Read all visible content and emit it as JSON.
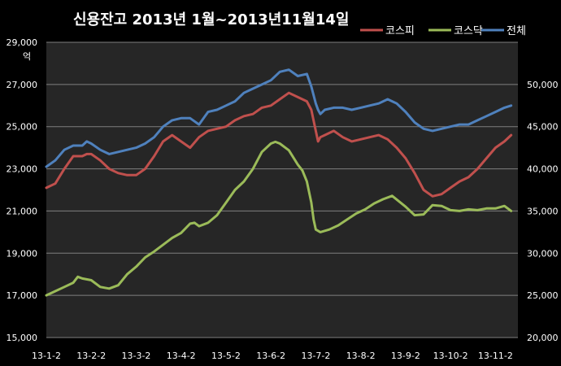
{
  "chart_data": {
    "type": "line",
    "title": "신용잔고 2013년 1월~2013년11월14일",
    "left_axis": {
      "unit": "억",
      "range": [
        15000,
        29000
      ],
      "ticks": [
        15000,
        17000,
        19000,
        21000,
        23000,
        25000,
        27000,
        29000
      ],
      "tick_labels": [
        "15,000",
        "17,000",
        "19,000",
        "21,000",
        "23,000",
        "25,000",
        "27,000",
        "29,000"
      ]
    },
    "right_axis": {
      "range": [
        20000,
        55000
      ],
      "ticks": [
        20000,
        25000,
        30000,
        35000,
        40000,
        45000,
        50000
      ],
      "tick_labels": [
        "20,000",
        "25,000",
        "30,000",
        "35,000",
        "40,000",
        "45,000",
        "50,000"
      ]
    },
    "x_tick_labels": [
      "13-1-2",
      "13-2-2",
      "13-3-2",
      "13-4-2",
      "13-5-2",
      "13-6-2",
      "13-7-2",
      "13-8-2",
      "13-9-2",
      "13-10-2",
      "13-11-2"
    ],
    "x_range": [
      0,
      10.5
    ],
    "grid": "horizontal",
    "legend_position": "top-right",
    "series": [
      {
        "name": "코스피",
        "axis": "left",
        "color": "#c0504d",
        "x": [
          0,
          0.2,
          0.4,
          0.6,
          0.8,
          0.9,
          1.0,
          1.2,
          1.4,
          1.6,
          1.8,
          2.0,
          2.2,
          2.4,
          2.6,
          2.8,
          3.0,
          3.2,
          3.4,
          3.6,
          3.8,
          4.0,
          4.2,
          4.4,
          4.6,
          4.8,
          5.0,
          5.2,
          5.4,
          5.6,
          5.8,
          5.9,
          6.0,
          6.05,
          6.1,
          6.2,
          6.4,
          6.6,
          6.8,
          7.0,
          7.2,
          7.4,
          7.6,
          7.8,
          8.0,
          8.2,
          8.4,
          8.6,
          8.8,
          9.0,
          9.2,
          9.4,
          9.6,
          9.8,
          10.0,
          10.2,
          10.35
        ],
        "values": [
          22100,
          22300,
          23000,
          23600,
          23600,
          23700,
          23700,
          23400,
          23000,
          22800,
          22700,
          22700,
          23000,
          23600,
          24300,
          24600,
          24300,
          24000,
          24500,
          24800,
          24900,
          25000,
          25300,
          25500,
          25600,
          25900,
          26000,
          26300,
          26600,
          26400,
          26200,
          25800,
          24800,
          24300,
          24500,
          24600,
          24800,
          24500,
          24300,
          24400,
          24500,
          24600,
          24400,
          24000,
          23500,
          22800,
          22000,
          21700,
          21800,
          22100,
          22400,
          22600,
          23000,
          23500,
          24000,
          24300,
          24600
        ]
      },
      {
        "name": "코스닥",
        "axis": "right",
        "color": "#9bbb59",
        "x": [
          0,
          0.2,
          0.4,
          0.6,
          0.7,
          0.8,
          1.0,
          1.2,
          1.4,
          1.6,
          1.8,
          2.0,
          2.2,
          2.4,
          2.6,
          2.8,
          3.0,
          3.2,
          3.3,
          3.4,
          3.6,
          3.8,
          4.0,
          4.2,
          4.4,
          4.6,
          4.8,
          5.0,
          5.1,
          5.2,
          5.4,
          5.6,
          5.7,
          5.8,
          5.9,
          5.95,
          6.0,
          6.1,
          6.3,
          6.5,
          6.7,
          6.9,
          7.1,
          7.3,
          7.5,
          7.7,
          8.0,
          8.2,
          8.4,
          8.6,
          8.8,
          9.0,
          9.2,
          9.4,
          9.6,
          9.8,
          10.0,
          10.2,
          10.35
        ],
        "values": [
          25000,
          25500,
          26000,
          26500,
          27200,
          27000,
          26800,
          26000,
          25800,
          26200,
          27500,
          28400,
          29500,
          30200,
          31000,
          31800,
          32400,
          33500,
          33600,
          33200,
          33600,
          34500,
          36000,
          37500,
          38500,
          40000,
          42000,
          43000,
          43200,
          43000,
          42200,
          40500,
          39800,
          38500,
          36000,
          34000,
          32800,
          32500,
          32800,
          33300,
          34000,
          34700,
          35200,
          35900,
          36400,
          36800,
          35500,
          34500,
          34600,
          35700,
          35600,
          35100,
          35000,
          35200,
          35100,
          35300,
          35300,
          35600,
          35000
        ]
      },
      {
        "name": "전체",
        "axis": "left",
        "color": "#4f81bd",
        "x": [
          0,
          0.2,
          0.4,
          0.6,
          0.8,
          0.9,
          1.0,
          1.2,
          1.4,
          1.6,
          1.8,
          2.0,
          2.2,
          2.4,
          2.6,
          2.8,
          3.0,
          3.2,
          3.4,
          3.6,
          3.8,
          4.0,
          4.2,
          4.4,
          4.6,
          4.8,
          5.0,
          5.2,
          5.4,
          5.6,
          5.8,
          5.9,
          6.0,
          6.05,
          6.1,
          6.2,
          6.4,
          6.6,
          6.8,
          7.0,
          7.2,
          7.4,
          7.6,
          7.8,
          8.0,
          8.2,
          8.4,
          8.6,
          8.8,
          9.0,
          9.2,
          9.4,
          9.6,
          9.8,
          10.0,
          10.2,
          10.35
        ],
        "values": [
          23100,
          23400,
          23900,
          24100,
          24100,
          24300,
          24200,
          23900,
          23700,
          23800,
          23900,
          24000,
          24200,
          24500,
          25000,
          25300,
          25400,
          25400,
          25100,
          25700,
          25800,
          26000,
          26200,
          26600,
          26800,
          27000,
          27200,
          27600,
          27700,
          27400,
          27500,
          26900,
          26100,
          25800,
          25600,
          25800,
          25900,
          25900,
          25800,
          25900,
          26000,
          26100,
          26300,
          26100,
          25700,
          25200,
          24900,
          24800,
          24900,
          25000,
          25100,
          25100,
          25300,
          25500,
          25700,
          25900,
          26000
        ]
      }
    ]
  }
}
